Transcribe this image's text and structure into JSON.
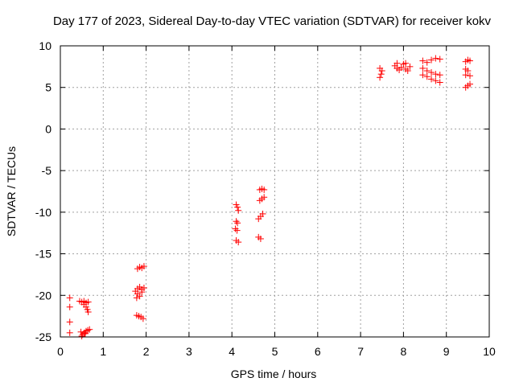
{
  "chart_data": {
    "type": "scatter",
    "title": "Day 177 of 2023, Sidereal Day-to-day VTEC variation (SDTVAR) for receiver kokv",
    "xlabel": "GPS time / hours",
    "ylabel": "SDTVAR / TECUs",
    "xlim": [
      0,
      10
    ],
    "ylim": [
      -25,
      10
    ],
    "xticks": [
      "0",
      "1",
      "2",
      "3",
      "4",
      "5",
      "6",
      "7",
      "8",
      "9",
      "10"
    ],
    "yticks": [
      "10",
      "5",
      "0",
      "-5",
      "-10",
      "-15",
      "-20",
      "-25"
    ],
    "grid": true,
    "marker": "+",
    "color": "#ff0000",
    "series": [
      {
        "name": "SDTVAR",
        "points": [
          [
            0.22,
            -20.3
          ],
          [
            0.22,
            -21.4
          ],
          [
            0.22,
            -23.2
          ],
          [
            0.22,
            -24.5
          ],
          [
            0.45,
            -20.7
          ],
          [
            0.5,
            -20.8
          ],
          [
            0.55,
            -20.7
          ],
          [
            0.6,
            -20.9
          ],
          [
            0.65,
            -20.8
          ],
          [
            0.55,
            -21.1
          ],
          [
            0.6,
            -21.4
          ],
          [
            0.63,
            -21.7
          ],
          [
            0.65,
            -22.0
          ],
          [
            0.48,
            -24.4
          ],
          [
            0.52,
            -24.7
          ],
          [
            0.56,
            -24.5
          ],
          [
            0.6,
            -24.3
          ],
          [
            0.64,
            -24.2
          ],
          [
            0.68,
            -24.1
          ],
          [
            0.5,
            -24.9
          ],
          [
            0.58,
            -24.6
          ],
          [
            1.8,
            -16.8
          ],
          [
            1.85,
            -16.6
          ],
          [
            1.9,
            -16.7
          ],
          [
            1.95,
            -16.5
          ],
          [
            1.75,
            -19.5
          ],
          [
            1.8,
            -19.2
          ],
          [
            1.85,
            -19.0
          ],
          [
            1.9,
            -19.3
          ],
          [
            1.95,
            -19.1
          ],
          [
            1.8,
            -19.8
          ],
          [
            1.85,
            -20.1
          ],
          [
            1.78,
            -20.3
          ],
          [
            1.9,
            -19.6
          ],
          [
            1.78,
            -22.4
          ],
          [
            1.83,
            -22.5
          ],
          [
            1.88,
            -22.6
          ],
          [
            1.93,
            -22.8
          ],
          [
            4.1,
            -9.1
          ],
          [
            4.13,
            -9.4
          ],
          [
            4.15,
            -9.8
          ],
          [
            4.1,
            -11.1
          ],
          [
            4.13,
            -11.3
          ],
          [
            4.08,
            -12.0
          ],
          [
            4.12,
            -12.2
          ],
          [
            4.1,
            -13.4
          ],
          [
            4.15,
            -13.6
          ],
          [
            4.65,
            -7.3
          ],
          [
            4.7,
            -7.2
          ],
          [
            4.75,
            -7.3
          ],
          [
            4.65,
            -8.6
          ],
          [
            4.7,
            -8.4
          ],
          [
            4.75,
            -8.2
          ],
          [
            4.62,
            -10.8
          ],
          [
            4.67,
            -10.5
          ],
          [
            4.72,
            -10.2
          ],
          [
            4.62,
            -13.0
          ],
          [
            4.67,
            -13.2
          ],
          [
            7.45,
            6.2
          ],
          [
            7.48,
            6.6
          ],
          [
            7.5,
            7.0
          ],
          [
            7.45,
            7.3
          ],
          [
            7.8,
            7.6
          ],
          [
            7.85,
            7.3
          ],
          [
            7.9,
            7.1
          ],
          [
            7.95,
            7.4
          ],
          [
            8.0,
            7.8
          ],
          [
            8.05,
            7.2
          ],
          [
            8.1,
            7.0
          ],
          [
            8.15,
            7.5
          ],
          [
            7.85,
            7.9
          ],
          [
            8.05,
            7.9
          ],
          [
            8.45,
            8.2
          ],
          [
            8.55,
            8.0
          ],
          [
            8.65,
            8.3
          ],
          [
            8.75,
            8.5
          ],
          [
            8.85,
            8.4
          ],
          [
            8.45,
            7.3
          ],
          [
            8.55,
            7.0
          ],
          [
            8.65,
            6.8
          ],
          [
            8.75,
            6.6
          ],
          [
            8.85,
            6.5
          ],
          [
            8.45,
            6.5
          ],
          [
            8.55,
            6.3
          ],
          [
            8.65,
            6.0
          ],
          [
            8.75,
            5.8
          ],
          [
            8.85,
            5.6
          ],
          [
            9.45,
            8.1
          ],
          [
            9.5,
            8.3
          ],
          [
            9.55,
            8.2
          ],
          [
            9.45,
            7.2
          ],
          [
            9.5,
            7.0
          ],
          [
            9.45,
            6.5
          ],
          [
            9.55,
            6.4
          ],
          [
            9.45,
            5.0
          ],
          [
            9.5,
            5.2
          ],
          [
            9.55,
            5.4
          ]
        ]
      }
    ]
  }
}
